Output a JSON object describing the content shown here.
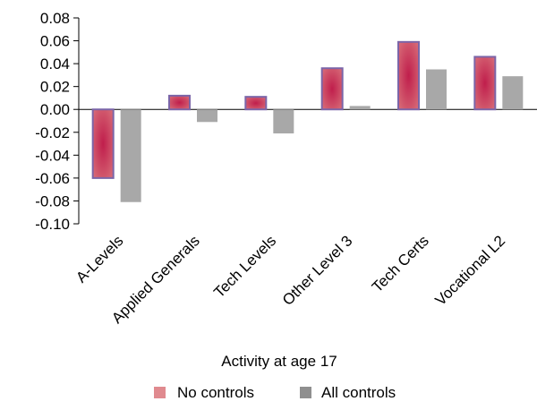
{
  "chart_data": {
    "type": "bar",
    "xlabel": "Activity at age 17",
    "ylabel": "",
    "title": "",
    "categories": [
      "A-Levels",
      "Applied Generals",
      "Tech Levels",
      "Other Level 3",
      "Tech Certs",
      "Vocational L2"
    ],
    "series": [
      {
        "name": "No controls",
        "values": [
          -0.06,
          0.012,
          0.011,
          0.036,
          0.059,
          0.046
        ],
        "color": "#c0314e",
        "edge": "#7b65a8"
      },
      {
        "name": "All controls",
        "values": [
          -0.081,
          -0.011,
          -0.021,
          0.003,
          0.035,
          0.029
        ],
        "color": "#a8a8a8"
      }
    ],
    "ylim": [
      -0.1,
      0.08
    ],
    "yticks": [
      "-0.10",
      "-0.08",
      "-0.06",
      "-0.04",
      "-0.02",
      "0.00",
      "0.02",
      "0.04",
      "0.06",
      "0.08"
    ],
    "grid": false,
    "legend_position": "bottom",
    "legend_swatch_colors": [
      "#e08a8f",
      "#8f8f8f"
    ]
  }
}
